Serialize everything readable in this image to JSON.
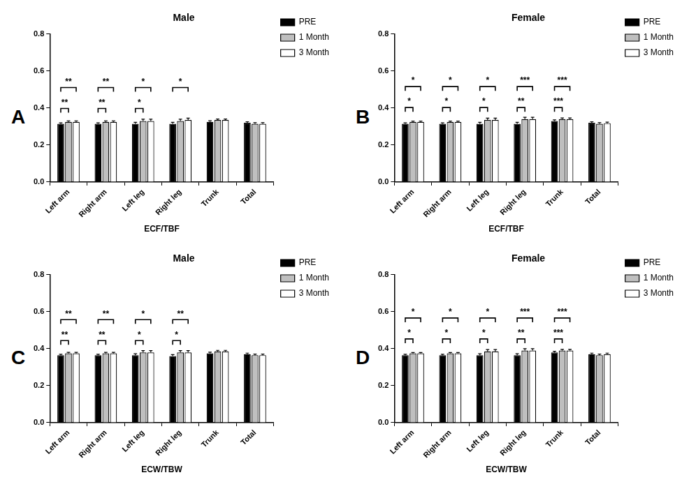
{
  "chart_data": [
    {
      "type": "bar",
      "panel_label": "A",
      "title": "Male",
      "x_label": "ECF/TBF",
      "categories": [
        "Left arm",
        "Right arm",
        "Left leg",
        "Right leg",
        "Trunk",
        "Total"
      ],
      "series": [
        {
          "name": "PRE",
          "color": "#000000",
          "values": [
            0.315,
            0.315,
            0.315,
            0.315,
            0.325,
            0.32
          ],
          "errors": [
            0.005,
            0.005,
            0.008,
            0.008,
            0.006,
            0.006
          ]
        },
        {
          "name": "1 Month",
          "color": "#bfbfbf",
          "values": [
            0.325,
            0.325,
            0.33,
            0.33,
            0.335,
            0.315
          ],
          "errors": [
            0.005,
            0.005,
            0.01,
            0.01,
            0.006,
            0.006
          ]
        },
        {
          "name": "3 Month",
          "color": "#ffffff",
          "values": [
            0.325,
            0.325,
            0.33,
            0.335,
            0.335,
            0.315
          ],
          "errors": [
            0.005,
            0.005,
            0.01,
            0.01,
            0.006,
            0.006
          ]
        }
      ],
      "significance": [
        {
          "category": "Left arm",
          "from": "PRE",
          "to": "1 Month",
          "label": "**"
        },
        {
          "category": "Left arm",
          "from": "PRE",
          "to": "3 Month",
          "label": "**"
        },
        {
          "category": "Right arm",
          "from": "PRE",
          "to": "1 Month",
          "label": "**"
        },
        {
          "category": "Right arm",
          "from": "PRE",
          "to": "3 Month",
          "label": "**"
        },
        {
          "category": "Left leg",
          "from": "PRE",
          "to": "1 Month",
          "label": "*"
        },
        {
          "category": "Left leg",
          "from": "PRE",
          "to": "3 Month",
          "label": "*"
        },
        {
          "category": "Right leg",
          "from": "PRE",
          "to": "3 Month",
          "label": "*"
        }
      ],
      "ylim": [
        0,
        0.8
      ],
      "yticks": [
        {
          "value": 0,
          "label": "0.0"
        },
        0.2,
        0.4,
        0.6,
        0.8
      ],
      "grid": false,
      "legend": "right"
    },
    {
      "type": "bar",
      "panel_label": "B",
      "title": "Female",
      "x_label": "ECF/TBF",
      "categories": [
        "Left arm",
        "Right arm",
        "Left leg",
        "Right leg",
        "Trunk",
        "Total"
      ],
      "series": [
        {
          "name": "PRE",
          "color": "#000000",
          "values": [
            0.315,
            0.315,
            0.315,
            0.315,
            0.33,
            0.32
          ],
          "errors": [
            0.005,
            0.005,
            0.008,
            0.008,
            0.006,
            0.006
          ]
        },
        {
          "name": "1 Month",
          "color": "#bfbfbf",
          "values": [
            0.325,
            0.325,
            0.335,
            0.34,
            0.34,
            0.315
          ],
          "errors": [
            0.004,
            0.004,
            0.01,
            0.01,
            0.006,
            0.006
          ]
        },
        {
          "name": "3 Month",
          "color": "#ffffff",
          "values": [
            0.325,
            0.325,
            0.335,
            0.34,
            0.34,
            0.318
          ],
          "errors": [
            0.004,
            0.004,
            0.01,
            0.01,
            0.006,
            0.006
          ]
        }
      ],
      "significance": [
        {
          "category": "Left arm",
          "from": "PRE",
          "to": "1 Month",
          "label": "*"
        },
        {
          "category": "Left arm",
          "from": "PRE",
          "to": "3 Month",
          "label": "*"
        },
        {
          "category": "Right arm",
          "from": "PRE",
          "to": "1 Month",
          "label": "*"
        },
        {
          "category": "Right arm",
          "from": "PRE",
          "to": "3 Month",
          "label": "*"
        },
        {
          "category": "Left leg",
          "from": "PRE",
          "to": "1 Month",
          "label": "*"
        },
        {
          "category": "Left leg",
          "from": "PRE",
          "to": "3 Month",
          "label": "*"
        },
        {
          "category": "Right leg",
          "from": "PRE",
          "to": "1 Month",
          "label": "**"
        },
        {
          "category": "Right leg",
          "from": "PRE",
          "to": "3 Month",
          "label": "***"
        },
        {
          "category": "Trunk",
          "from": "PRE",
          "to": "1 Month",
          "label": "***"
        },
        {
          "category": "Trunk",
          "from": "PRE",
          "to": "3 Month",
          "label": "***"
        }
      ],
      "ylim": [
        0,
        0.8
      ],
      "yticks": [
        {
          "value": 0,
          "label": "0.0"
        },
        0.2,
        0.4,
        0.6,
        0.8
      ],
      "grid": false,
      "legend": "right"
    },
    {
      "type": "bar",
      "panel_label": "C",
      "title": "Male",
      "x_label": "ECW/TBW",
      "categories": [
        "Left arm",
        "Right arm",
        "Left leg",
        "Right leg",
        "Trunk",
        "Total"
      ],
      "series": [
        {
          "name": "PRE",
          "color": "#000000",
          "values": [
            0.365,
            0.365,
            0.365,
            0.36,
            0.375,
            0.37
          ],
          "errors": [
            0.005,
            0.005,
            0.008,
            0.008,
            0.006,
            0.006
          ]
        },
        {
          "name": "1 Month",
          "color": "#bfbfbf",
          "values": [
            0.375,
            0.375,
            0.38,
            0.38,
            0.385,
            0.365
          ],
          "errors": [
            0.005,
            0.005,
            0.01,
            0.01,
            0.006,
            0.006
          ]
        },
        {
          "name": "3 Month",
          "color": "#ffffff",
          "values": [
            0.375,
            0.375,
            0.38,
            0.38,
            0.385,
            0.365
          ],
          "errors": [
            0.005,
            0.005,
            0.01,
            0.01,
            0.006,
            0.006
          ]
        }
      ],
      "significance": [
        {
          "category": "Left arm",
          "from": "PRE",
          "to": "1 Month",
          "label": "**"
        },
        {
          "category": "Left arm",
          "from": "PRE",
          "to": "3 Month",
          "label": "**"
        },
        {
          "category": "Right arm",
          "from": "PRE",
          "to": "1 Month",
          "label": "**"
        },
        {
          "category": "Right arm",
          "from": "PRE",
          "to": "3 Month",
          "label": "**"
        },
        {
          "category": "Left leg",
          "from": "PRE",
          "to": "1 Month",
          "label": "*"
        },
        {
          "category": "Left leg",
          "from": "PRE",
          "to": "3 Month",
          "label": "*"
        },
        {
          "category": "Right leg",
          "from": "PRE",
          "to": "1 Month",
          "label": "*"
        },
        {
          "category": "Right leg",
          "from": "PRE",
          "to": "3 Month",
          "label": "**"
        }
      ],
      "ylim": [
        0,
        0.8
      ],
      "yticks": [
        {
          "value": 0,
          "label": "0.0"
        },
        0.2,
        0.4,
        0.6,
        0.8
      ],
      "grid": false,
      "legend": "right"
    },
    {
      "type": "bar",
      "panel_label": "D",
      "title": "Female",
      "x_label": "ECW/TBW",
      "categories": [
        "Left arm",
        "Right arm",
        "Left leg",
        "Right leg",
        "Trunk",
        "Total"
      ],
      "series": [
        {
          "name": "PRE",
          "color": "#000000",
          "values": [
            0.365,
            0.365,
            0.365,
            0.365,
            0.38,
            0.37
          ],
          "errors": [
            0.005,
            0.005,
            0.008,
            0.008,
            0.006,
            0.006
          ]
        },
        {
          "name": "1 Month",
          "color": "#bfbfbf",
          "values": [
            0.375,
            0.375,
            0.385,
            0.39,
            0.39,
            0.365
          ],
          "errors": [
            0.004,
            0.004,
            0.01,
            0.01,
            0.006,
            0.006
          ]
        },
        {
          "name": "3 Month",
          "color": "#ffffff",
          "values": [
            0.375,
            0.375,
            0.385,
            0.39,
            0.39,
            0.37
          ],
          "errors": [
            0.004,
            0.004,
            0.01,
            0.01,
            0.006,
            0.006
          ]
        }
      ],
      "significance": [
        {
          "category": "Left arm",
          "from": "PRE",
          "to": "1 Month",
          "label": "*"
        },
        {
          "category": "Left arm",
          "from": "PRE",
          "to": "3 Month",
          "label": "*"
        },
        {
          "category": "Right arm",
          "from": "PRE",
          "to": "1 Month",
          "label": "*"
        },
        {
          "category": "Right arm",
          "from": "PRE",
          "to": "3 Month",
          "label": "*"
        },
        {
          "category": "Left leg",
          "from": "PRE",
          "to": "1 Month",
          "label": "*"
        },
        {
          "category": "Left leg",
          "from": "PRE",
          "to": "3 Month",
          "label": "*"
        },
        {
          "category": "Right leg",
          "from": "PRE",
          "to": "1 Month",
          "label": "**"
        },
        {
          "category": "Right leg",
          "from": "PRE",
          "to": "3 Month",
          "label": "***"
        },
        {
          "category": "Trunk",
          "from": "PRE",
          "to": "1 Month",
          "label": "***"
        },
        {
          "category": "Trunk",
          "from": "PRE",
          "to": "3 Month",
          "label": "***"
        }
      ],
      "ylim": [
        0,
        0.8
      ],
      "yticks": [
        {
          "value": 0,
          "label": "0.0"
        },
        0.2,
        0.4,
        0.6,
        0.8
      ],
      "grid": false,
      "legend": "right"
    }
  ]
}
